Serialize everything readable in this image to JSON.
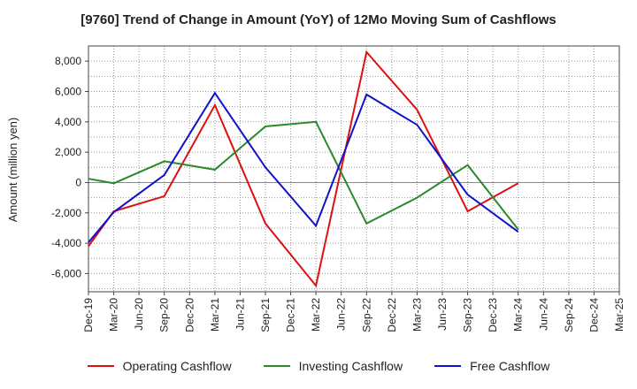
{
  "chart_data": {
    "type": "line",
    "title": "[9760]  Trend of Change in Amount (YoY) of 12Mo Moving Sum of Cashflows",
    "ylabel": "Amount (million yen)",
    "xlabel": "",
    "ylim": [
      -7200,
      9000
    ],
    "yticks": [
      -6000,
      -4000,
      -2000,
      0,
      2000,
      4000,
      6000,
      8000
    ],
    "ytick_labels": [
      "-6,000",
      "-4,000",
      "-2,000",
      "0",
      "2,000",
      "4,000",
      "6,000",
      "8,000"
    ],
    "categories": [
      "Dec-19",
      "Mar-20",
      "Jun-20",
      "Sep-20",
      "Dec-20",
      "Mar-21",
      "Jun-21",
      "Sep-21",
      "Dec-21",
      "Mar-22",
      "Jun-22",
      "Sep-22",
      "Dec-22",
      "Mar-23",
      "Jun-23",
      "Sep-23",
      "Dec-23",
      "Mar-24",
      "Jun-24",
      "Sep-24",
      "Dec-24",
      "Mar-25"
    ],
    "series": [
      {
        "name": "Operating Cashflow",
        "color": "#dd1111",
        "points": [
          [
            0,
            -4200
          ],
          [
            1,
            -1900
          ],
          [
            3,
            -900
          ],
          [
            5,
            5100
          ],
          [
            7,
            -2700
          ],
          [
            9,
            -6800
          ],
          [
            11,
            8600
          ],
          [
            13,
            4800
          ],
          [
            15,
            -1900
          ],
          [
            17,
            -50
          ]
        ]
      },
      {
        "name": "Investing Cashflow",
        "color": "#2a8a2a",
        "points": [
          [
            0,
            250
          ],
          [
            1,
            -50
          ],
          [
            3,
            1400
          ],
          [
            5,
            850
          ],
          [
            7,
            3700
          ],
          [
            9,
            4000
          ],
          [
            11,
            -2700
          ],
          [
            13,
            -1000
          ],
          [
            15,
            1150
          ],
          [
            17,
            -3100
          ]
        ]
      },
      {
        "name": "Free Cashflow",
        "color": "#1111cc",
        "points": [
          [
            0,
            -3950
          ],
          [
            1,
            -1950
          ],
          [
            3,
            500
          ],
          [
            5,
            5900
          ],
          [
            7,
            1000
          ],
          [
            9,
            -2850
          ],
          [
            11,
            5800
          ],
          [
            13,
            3800
          ],
          [
            15,
            -800
          ],
          [
            17,
            -3250
          ]
        ]
      }
    ],
    "grid": true,
    "legend_position": "bottom"
  }
}
